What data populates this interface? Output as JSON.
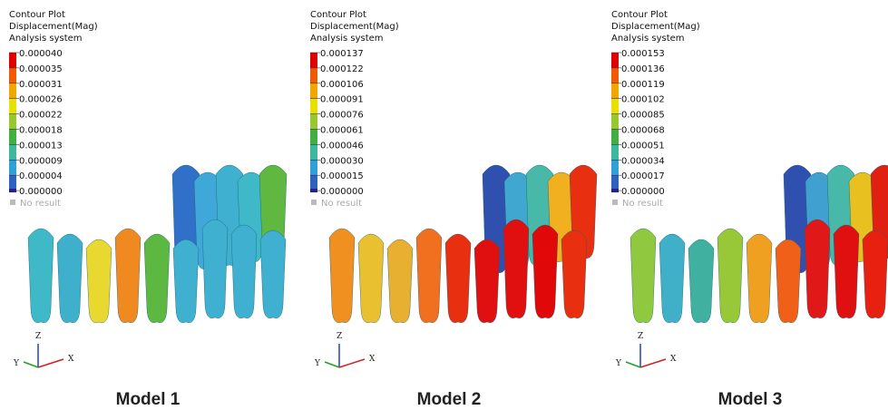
{
  "panels": [
    {
      "header": [
        "Contour Plot",
        "Displacement(Mag)",
        "Analysis system"
      ],
      "legend": [
        "0.000040",
        "0.000035",
        "0.000031",
        "0.000026",
        "0.000022",
        "0.000018",
        "0.000013",
        "0.000009",
        "0.000004",
        "0.000000"
      ],
      "no_result": "No result",
      "axes": {
        "z": "Z",
        "y": "Y",
        "x": "X"
      },
      "caption": "Model 1"
    },
    {
      "header": [
        "Contour Plot",
        "Displacement(Mag)",
        "Analysis system"
      ],
      "legend": [
        "0.000137",
        "0.000122",
        "0.000106",
        "0.000091",
        "0.000076",
        "0.000061",
        "0.000046",
        "0.000030",
        "0.000015",
        "0.000000"
      ],
      "no_result": "No result",
      "axes": {
        "z": "Z",
        "y": "Y",
        "x": "X"
      },
      "caption": "Model 2"
    },
    {
      "header": [
        "Contour Plot",
        "Displacement(Mag)",
        "Analysis system"
      ],
      "legend": [
        "0.000153",
        "0.000136",
        "0.000119",
        "0.000102",
        "0.000085",
        "0.000068",
        "0.000051",
        "0.000034",
        "0.000017",
        "0.000000"
      ],
      "no_result": "No result",
      "axes": {
        "z": "Z",
        "y": "Y",
        "x": "X"
      },
      "caption": "Model 3"
    }
  ]
}
